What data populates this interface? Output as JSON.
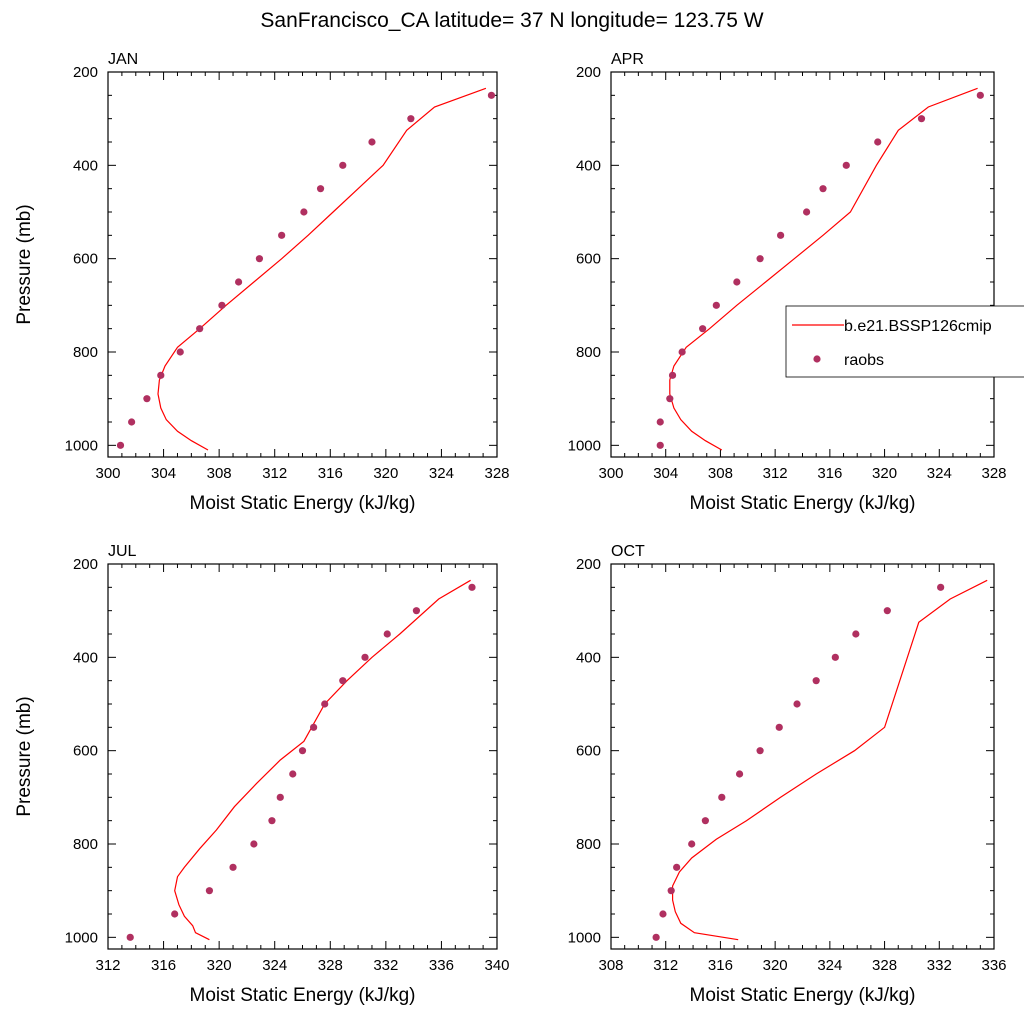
{
  "figure": {
    "title": "SanFrancisco_CA  latitude= 37 N longitude= 123.75 W"
  },
  "legend": {
    "placement": "right of APR panel",
    "entries": [
      {
        "label": "b.e21.BSSP126cmip",
        "kind": "line",
        "color": "#ff0000"
      },
      {
        "label": "raobs",
        "kind": "marker",
        "color": "#b03060"
      }
    ]
  },
  "colors": {
    "model_line": "#ff0000",
    "raobs_marker": "#b03060",
    "axes": "#000000"
  },
  "chart_data": [
    {
      "type": "line",
      "panel": "JAN",
      "xlabel": "Moist Static Energy (kJ/kg)",
      "ylabel": "Pressure (mb)",
      "xlim": [
        300,
        328
      ],
      "ylim": [
        1025,
        200
      ],
      "xticks": [
        300,
        304,
        308,
        312,
        316,
        320,
        324,
        328
      ],
      "yticks": [
        200,
        400,
        600,
        800,
        1000
      ],
      "grid": false,
      "series": [
        {
          "name": "b.e21.BSSP126cmip",
          "style": "line",
          "x": [
            307.2,
            306.0,
            305.0,
            304.2,
            303.8,
            303.6,
            303.7,
            304.1,
            305.0,
            306.6,
            308.5,
            310.5,
            312.5,
            314.4,
            316.2,
            318.0,
            319.8,
            321.5,
            323.5,
            327.2
          ],
          "y": [
            1010,
            990,
            970,
            945,
            920,
            890,
            860,
            830,
            790,
            750,
            700,
            650,
            600,
            550,
            500,
            450,
            400,
            325,
            275,
            235
          ]
        },
        {
          "name": "raobs",
          "style": "marker",
          "x": [
            300.9,
            301.7,
            302.8,
            303.8,
            305.2,
            306.6,
            308.2,
            309.4,
            310.9,
            312.5,
            314.1,
            315.3,
            316.9,
            319.0,
            321.8,
            327.6
          ],
          "y": [
            1000,
            950,
            900,
            850,
            800,
            750,
            700,
            650,
            600,
            550,
            500,
            450,
            400,
            350,
            300,
            250
          ]
        }
      ]
    },
    {
      "type": "line",
      "panel": "APR",
      "xlabel": "Moist Static Energy (kJ/kg)",
      "ylabel": "",
      "xlim": [
        300,
        328
      ],
      "ylim": [
        1025,
        200
      ],
      "xticks": [
        300,
        304,
        308,
        312,
        316,
        320,
        324,
        328
      ],
      "yticks": [
        200,
        400,
        600,
        800,
        1000
      ],
      "grid": false,
      "series": [
        {
          "name": "b.e21.BSSP126cmip",
          "style": "line",
          "x": [
            308.1,
            306.9,
            305.9,
            305.1,
            304.6,
            304.3,
            304.3,
            304.6,
            305.5,
            307.2,
            309.2,
            311.3,
            313.4,
            315.5,
            317.5,
            319.4,
            321.0,
            323.2,
            326.8
          ],
          "y": [
            1010,
            990,
            970,
            945,
            920,
            890,
            860,
            830,
            790,
            750,
            700,
            650,
            600,
            550,
            500,
            400,
            325,
            275,
            235
          ]
        },
        {
          "name": "raobs",
          "style": "marker",
          "x": [
            303.6,
            303.6,
            304.3,
            304.5,
            305.2,
            306.7,
            307.7,
            309.2,
            310.9,
            312.4,
            314.3,
            315.5,
            317.2,
            319.5,
            322.7,
            327.0
          ],
          "y": [
            1000,
            950,
            900,
            850,
            800,
            750,
            700,
            650,
            600,
            550,
            500,
            450,
            400,
            350,
            300,
            250
          ]
        }
      ]
    },
    {
      "type": "line",
      "panel": "JUL",
      "xlabel": "Moist Static Energy (kJ/kg)",
      "ylabel": "Pressure (mb)",
      "xlim": [
        312,
        340
      ],
      "ylim": [
        1025,
        200
      ],
      "xticks": [
        312,
        316,
        320,
        324,
        328,
        332,
        336,
        340
      ],
      "yticks": [
        200,
        400,
        600,
        800,
        1000
      ],
      "grid": false,
      "series": [
        {
          "name": "b.e21.BSSP126cmip",
          "style": "line",
          "x": [
            319.3,
            318.3,
            318.1,
            317.5,
            317.1,
            316.8,
            317.0,
            317.5,
            318.6,
            319.8,
            321.1,
            322.7,
            324.4,
            326.1,
            327.6,
            329.2,
            331.0,
            333.0,
            335.8,
            338.1
          ],
          "y": [
            1005,
            990,
            975,
            955,
            930,
            900,
            870,
            850,
            810,
            770,
            720,
            670,
            620,
            580,
            500,
            450,
            400,
            350,
            275,
            235
          ]
        },
        {
          "name": "raobs",
          "style": "marker",
          "x": [
            313.6,
            316.8,
            319.3,
            321.0,
            322.5,
            323.8,
            324.4,
            325.3,
            326.0,
            326.8,
            327.6,
            328.9,
            330.5,
            332.1,
            334.2,
            338.2
          ],
          "y": [
            1000,
            950,
            900,
            850,
            800,
            750,
            700,
            650,
            600,
            550,
            500,
            450,
            400,
            350,
            300,
            250
          ]
        }
      ]
    },
    {
      "type": "line",
      "panel": "OCT",
      "xlabel": "Moist Static Energy (kJ/kg)",
      "ylabel": "",
      "xlim": [
        308,
        336
      ],
      "ylim": [
        1025,
        200
      ],
      "xticks": [
        308,
        312,
        316,
        320,
        324,
        328,
        332,
        336
      ],
      "yticks": [
        200,
        400,
        600,
        800,
        1000
      ],
      "grid": false,
      "series": [
        {
          "name": "b.e21.BSSP126cmip",
          "style": "line",
          "x": [
            317.3,
            314.1,
            313.1,
            312.7,
            312.5,
            312.5,
            313.0,
            313.9,
            315.7,
            317.9,
            320.4,
            323.0,
            325.8,
            328.0,
            330.5,
            332.8,
            335.5
          ],
          "y": [
            1005,
            990,
            970,
            945,
            920,
            890,
            860,
            830,
            790,
            750,
            700,
            650,
            600,
            550,
            325,
            275,
            235
          ]
        },
        {
          "name": "raobs",
          "style": "marker",
          "x": [
            311.3,
            311.8,
            312.4,
            312.8,
            313.9,
            314.9,
            316.1,
            317.4,
            318.9,
            320.3,
            321.6,
            323.0,
            324.4,
            325.9,
            328.2,
            332.1
          ],
          "y": [
            1000,
            950,
            900,
            850,
            800,
            750,
            700,
            650,
            600,
            550,
            500,
            450,
            400,
            350,
            300,
            250
          ]
        }
      ]
    }
  ]
}
